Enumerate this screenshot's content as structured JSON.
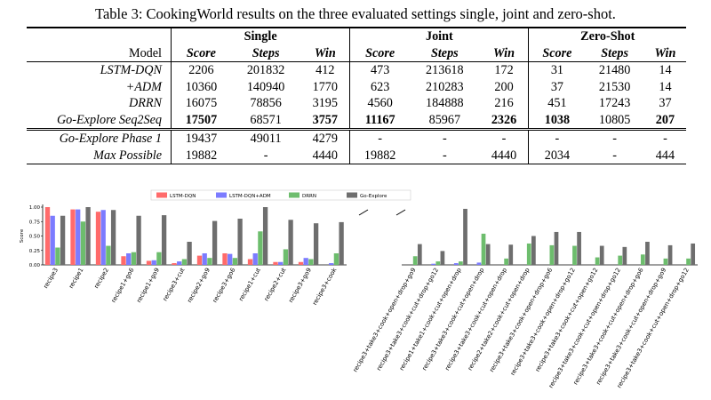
{
  "caption": "Table 3: CookingWorld results on the three evaluated settings single, joint and zero-shot.",
  "table": {
    "model_header": "Model",
    "groups": [
      "Single",
      "Joint",
      "Zero-Shot"
    ],
    "subheaders": [
      "Score",
      "Steps",
      "Win",
      "Score",
      "Steps",
      "Win",
      "Score",
      "Steps",
      "Win"
    ],
    "rows": [
      {
        "model": "LSTM-DQN",
        "cells": [
          "2206",
          "201832",
          "412",
          "473",
          "213618",
          "172",
          "31",
          "21480",
          "14"
        ]
      },
      {
        "model": "+ADM",
        "cells": [
          "10360",
          "140940",
          "1770",
          "623",
          "210283",
          "200",
          "37",
          "21530",
          "14"
        ]
      },
      {
        "model": "DRRN",
        "cells": [
          "16075",
          "78856",
          "3195",
          "4560",
          "184888",
          "216",
          "451",
          "17243",
          "37"
        ]
      },
      {
        "model": "Go-Explore Seq2Seq",
        "cells": [
          "17507",
          "68571",
          "3757",
          "11167",
          "85967",
          "2326",
          "1038",
          "10805",
          "207"
        ],
        "bold": [
          0,
          2,
          3,
          5,
          6,
          8
        ]
      },
      {
        "model": "Go-Explore Phase 1",
        "cells": [
          "19437",
          "49011",
          "4279",
          "-",
          "-",
          "-",
          "-",
          "-",
          "-"
        ]
      },
      {
        "model": "Max Possible",
        "cells": [
          "19882",
          "-",
          "4440",
          "19882",
          "-",
          "4440",
          "2034",
          "-",
          "444"
        ]
      }
    ]
  },
  "chart_data": [
    {
      "type": "bar",
      "title": "",
      "ylabel": "Score",
      "ylim": [
        0,
        1.0
      ],
      "yticks": [
        "0.00",
        "0.25",
        "0.50",
        "0.75",
        "1.00"
      ],
      "legend_position": "top",
      "colors": [
        "#ff6b6b",
        "#7b7bff",
        "#6dbd6d",
        "#6e6e6e"
      ],
      "categories": [
        "recipe3",
        "recipe1",
        "recipe2",
        "recipe1+go6",
        "recipe1+go9",
        "recipe3+cut",
        "recipe2+go9",
        "recipe3+go6",
        "recipe1+cut",
        "recipe2+cut",
        "recipe3+go9",
        "recipe3+cook"
      ],
      "series": [
        {
          "name": "LSTM-DQN",
          "values": [
            1.0,
            0.96,
            0.92,
            0.15,
            0.07,
            0.03,
            0.16,
            0.2,
            0.1,
            0.05,
            0.05,
            0.0
          ]
        },
        {
          "name": "LSTM-DQN+ADM",
          "values": [
            0.85,
            0.96,
            0.95,
            0.2,
            0.08,
            0.06,
            0.2,
            0.19,
            0.2,
            0.05,
            0.12,
            0.03
          ]
        },
        {
          "name": "DRRN",
          "values": [
            0.3,
            0.75,
            0.33,
            0.22,
            0.22,
            0.1,
            0.12,
            0.12,
            0.58,
            0.27,
            0.1,
            0.2
          ]
        },
        {
          "name": "Go-Explore",
          "values": [
            0.85,
            1.0,
            0.95,
            0.85,
            0.86,
            0.4,
            0.76,
            0.8,
            1.0,
            0.78,
            0.72,
            0.74
          ]
        }
      ]
    },
    {
      "type": "bar",
      "title": "",
      "ylim": [
        0,
        1.0
      ],
      "colors": [
        "#ff6b6b",
        "#7b7bff",
        "#6dbd6d",
        "#6e6e6e"
      ],
      "categories": [
        "recipe3+take3+cook+open+drop+go9",
        "recipe3+take3+cook+cut+drop+go12",
        "recipe1+take1+cook+cut+open+drop",
        "recipe3+take3+cook+cut+open+drop",
        "recipe3+take3+cook+cut+open+drop",
        "recipe2+take2+cook+cut+open+drop",
        "recipe3+take3+cook+open+drop+go6",
        "recipe3+take3+cook+open+drop+go12",
        "recipe3+take3+cook+cut+open+go12",
        "recipe3+take3+cook+cut+open+drop+go12",
        "recipe3+take3+cook+cut+open+drop+go6",
        "recipe3+take3+cook+cut+open+drop+go9",
        "recipe3+take3+cook+cut+open+drop+go12"
      ],
      "series": [
        {
          "name": "LSTM-DQN",
          "values": [
            0,
            0,
            0,
            0,
            0,
            0,
            0,
            0,
            0,
            0,
            0,
            0,
            0
          ]
        },
        {
          "name": "LSTM-DQN+ADM",
          "values": [
            0,
            0.02,
            0.03,
            0.04,
            0,
            0,
            0,
            0,
            0,
            0,
            0,
            0,
            0
          ]
        },
        {
          "name": "DRRN",
          "values": [
            0.15,
            0.06,
            0.06,
            0.54,
            0.11,
            0.37,
            0.34,
            0.33,
            0.13,
            0.16,
            0.18,
            0.11,
            0.11
          ]
        },
        {
          "name": "Go-Explore",
          "values": [
            0.36,
            0.24,
            0.97,
            0.36,
            0.35,
            0.5,
            0.57,
            0.57,
            0.33,
            0.31,
            0.4,
            0.34,
            0.37
          ]
        }
      ]
    }
  ]
}
